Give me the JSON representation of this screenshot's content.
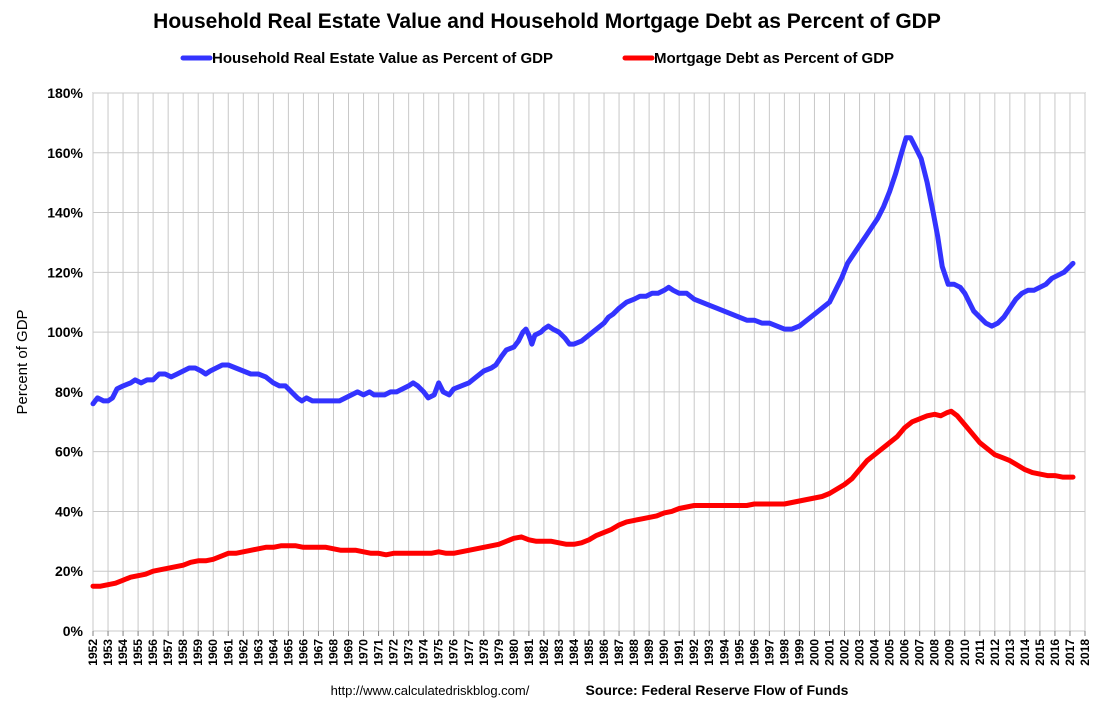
{
  "chart_data": {
    "type": "line",
    "title": "Household Real Estate Value and Household Mortgage Debt as Percent of GDP",
    "ylabel": "Percent of GDP",
    "xlabel": "",
    "xlim": [
      1952,
      2018
    ],
    "ylim": [
      0,
      180
    ],
    "y_ticks": [
      "0%",
      "20%",
      "40%",
      "60%",
      "80%",
      "100%",
      "120%",
      "140%",
      "160%",
      "180%"
    ],
    "x_ticks": [
      "1952",
      "1953",
      "1954",
      "1955",
      "1956",
      "1957",
      "1958",
      "1959",
      "1960",
      "1961",
      "1962",
      "1963",
      "1964",
      "1965",
      "1966",
      "1967",
      "1968",
      "1969",
      "1970",
      "1971",
      "1972",
      "1973",
      "1974",
      "1975",
      "1976",
      "1977",
      "1978",
      "1979",
      "1980",
      "1981",
      "1982",
      "1983",
      "1984",
      "1985",
      "1986",
      "1987",
      "1988",
      "1989",
      "1990",
      "1991",
      "1992",
      "1993",
      "1994",
      "1995",
      "1996",
      "1997",
      "1998",
      "1999",
      "2000",
      "2001",
      "2002",
      "2003",
      "2004",
      "2005",
      "2006",
      "2007",
      "2008",
      "2009",
      "2010",
      "2011",
      "2012",
      "2013",
      "2014",
      "2015",
      "2016",
      "2017",
      "2018"
    ],
    "grid": true,
    "legend_position": "top",
    "series": [
      {
        "name": "Household Real Estate Value as Percent of GDP",
        "color": "#3333ff",
        "points": [
          [
            1952.0,
            76
          ],
          [
            1952.3,
            78
          ],
          [
            1952.7,
            77
          ],
          [
            1953.0,
            77
          ],
          [
            1953.3,
            78
          ],
          [
            1953.6,
            81
          ],
          [
            1954.0,
            82
          ],
          [
            1954.5,
            83
          ],
          [
            1954.8,
            84
          ],
          [
            1955.2,
            83
          ],
          [
            1955.6,
            84
          ],
          [
            1956.0,
            84
          ],
          [
            1956.4,
            86
          ],
          [
            1956.8,
            86
          ],
          [
            1957.2,
            85
          ],
          [
            1957.6,
            86
          ],
          [
            1958.0,
            87
          ],
          [
            1958.4,
            88
          ],
          [
            1958.8,
            88
          ],
          [
            1959.2,
            87
          ],
          [
            1959.5,
            86
          ],
          [
            1959.8,
            87
          ],
          [
            1960.2,
            88
          ],
          [
            1960.6,
            89
          ],
          [
            1961.0,
            89
          ],
          [
            1961.5,
            88
          ],
          [
            1962.0,
            87
          ],
          [
            1962.5,
            86
          ],
          [
            1963.0,
            86
          ],
          [
            1963.5,
            85
          ],
          [
            1964.0,
            83
          ],
          [
            1964.4,
            82
          ],
          [
            1964.8,
            82
          ],
          [
            1965.2,
            80
          ],
          [
            1965.6,
            78
          ],
          [
            1965.9,
            77
          ],
          [
            1966.2,
            78
          ],
          [
            1966.6,
            77
          ],
          [
            1967.0,
            77
          ],
          [
            1967.5,
            77
          ],
          [
            1968.0,
            77
          ],
          [
            1968.4,
            77
          ],
          [
            1968.8,
            78
          ],
          [
            1969.2,
            79
          ],
          [
            1969.6,
            80
          ],
          [
            1970.0,
            79
          ],
          [
            1970.4,
            80
          ],
          [
            1970.7,
            79
          ],
          [
            1971.0,
            79
          ],
          [
            1971.4,
            79
          ],
          [
            1971.8,
            80
          ],
          [
            1972.2,
            80
          ],
          [
            1972.6,
            81
          ],
          [
            1973.0,
            82
          ],
          [
            1973.3,
            83
          ],
          [
            1973.6,
            82
          ],
          [
            1974.0,
            80
          ],
          [
            1974.3,
            78
          ],
          [
            1974.7,
            79
          ],
          [
            1975.0,
            83
          ],
          [
            1975.3,
            80
          ],
          [
            1975.7,
            79
          ],
          [
            1976.0,
            81
          ],
          [
            1976.5,
            82
          ],
          [
            1977.0,
            83
          ],
          [
            1977.5,
            85
          ],
          [
            1978.0,
            87
          ],
          [
            1978.5,
            88
          ],
          [
            1978.8,
            89
          ],
          [
            1979.2,
            92
          ],
          [
            1979.5,
            94
          ],
          [
            1980.0,
            95
          ],
          [
            1980.3,
            97
          ],
          [
            1980.6,
            100
          ],
          [
            1980.8,
            101
          ],
          [
            1981.0,
            99
          ],
          [
            1981.2,
            96
          ],
          [
            1981.4,
            99
          ],
          [
            1981.8,
            100
          ],
          [
            1982.0,
            101
          ],
          [
            1982.3,
            102
          ],
          [
            1982.6,
            101
          ],
          [
            1983.0,
            100
          ],
          [
            1983.4,
            98
          ],
          [
            1983.7,
            96
          ],
          [
            1984.0,
            96
          ],
          [
            1984.5,
            97
          ],
          [
            1985.0,
            99
          ],
          [
            1985.5,
            101
          ],
          [
            1986.0,
            103
          ],
          [
            1986.3,
            105
          ],
          [
            1986.6,
            106
          ],
          [
            1987.0,
            108
          ],
          [
            1987.5,
            110
          ],
          [
            1988.0,
            111
          ],
          [
            1988.4,
            112
          ],
          [
            1988.8,
            112
          ],
          [
            1989.2,
            113
          ],
          [
            1989.6,
            113
          ],
          [
            1990.0,
            114
          ],
          [
            1990.3,
            115
          ],
          [
            1990.6,
            114
          ],
          [
            1991.0,
            113
          ],
          [
            1991.5,
            113
          ],
          [
            1992.0,
            111
          ],
          [
            1992.5,
            110
          ],
          [
            1993.0,
            109
          ],
          [
            1993.5,
            108
          ],
          [
            1994.0,
            107
          ],
          [
            1994.5,
            106
          ],
          [
            1995.0,
            105
          ],
          [
            1995.5,
            104
          ],
          [
            1996.0,
            104
          ],
          [
            1996.5,
            103
          ],
          [
            1997.0,
            103
          ],
          [
            1997.5,
            102
          ],
          [
            1998.0,
            101
          ],
          [
            1998.5,
            101
          ],
          [
            1999.0,
            102
          ],
          [
            1999.5,
            104
          ],
          [
            2000.0,
            106
          ],
          [
            2000.5,
            108
          ],
          [
            2001.0,
            110
          ],
          [
            2001.4,
            114
          ],
          [
            2001.8,
            118
          ],
          [
            2002.2,
            123
          ],
          [
            2002.6,
            126
          ],
          [
            2003.0,
            129
          ],
          [
            2003.4,
            132
          ],
          [
            2003.8,
            135
          ],
          [
            2004.2,
            138
          ],
          [
            2004.6,
            142
          ],
          [
            2005.0,
            147
          ],
          [
            2005.4,
            153
          ],
          [
            2005.8,
            160
          ],
          [
            2006.1,
            165
          ],
          [
            2006.4,
            165
          ],
          [
            2006.8,
            161
          ],
          [
            2007.1,
            158
          ],
          [
            2007.5,
            150
          ],
          [
            2007.9,
            140
          ],
          [
            2008.2,
            132
          ],
          [
            2008.5,
            122
          ],
          [
            2008.9,
            116
          ],
          [
            2009.3,
            116
          ],
          [
            2009.7,
            115
          ],
          [
            2010.0,
            113
          ],
          [
            2010.3,
            110
          ],
          [
            2010.6,
            107
          ],
          [
            2011.0,
            105
          ],
          [
            2011.4,
            103
          ],
          [
            2011.8,
            102
          ],
          [
            2012.2,
            103
          ],
          [
            2012.6,
            105
          ],
          [
            2013.0,
            108
          ],
          [
            2013.4,
            111
          ],
          [
            2013.8,
            113
          ],
          [
            2014.2,
            114
          ],
          [
            2014.6,
            114
          ],
          [
            2015.0,
            115
          ],
          [
            2015.4,
            116
          ],
          [
            2015.8,
            118
          ],
          [
            2016.2,
            119
          ],
          [
            2016.6,
            120
          ],
          [
            2017.0,
            122
          ],
          [
            2017.2,
            123
          ]
        ]
      },
      {
        "name": "Mortgage Debt as Percent of GDP",
        "color": "#ff0000",
        "points": [
          [
            1952.0,
            15
          ],
          [
            1952.5,
            15
          ],
          [
            1953.0,
            15.5
          ],
          [
            1953.5,
            16
          ],
          [
            1954.0,
            17
          ],
          [
            1954.5,
            18
          ],
          [
            1955.0,
            18.5
          ],
          [
            1955.5,
            19
          ],
          [
            1956.0,
            20
          ],
          [
            1956.5,
            20.5
          ],
          [
            1957.0,
            21
          ],
          [
            1957.5,
            21.5
          ],
          [
            1958.0,
            22
          ],
          [
            1958.5,
            23
          ],
          [
            1959.0,
            23.5
          ],
          [
            1959.5,
            23.5
          ],
          [
            1960.0,
            24
          ],
          [
            1960.5,
            25
          ],
          [
            1961.0,
            26
          ],
          [
            1961.5,
            26
          ],
          [
            1962.0,
            26.5
          ],
          [
            1962.5,
            27
          ],
          [
            1963.0,
            27.5
          ],
          [
            1963.5,
            28
          ],
          [
            1964.0,
            28
          ],
          [
            1964.5,
            28.5
          ],
          [
            1965.0,
            28.5
          ],
          [
            1965.5,
            28.5
          ],
          [
            1966.0,
            28
          ],
          [
            1966.5,
            28
          ],
          [
            1967.0,
            28
          ],
          [
            1967.5,
            28
          ],
          [
            1968.0,
            27.5
          ],
          [
            1968.5,
            27
          ],
          [
            1969.0,
            27
          ],
          [
            1969.5,
            27
          ],
          [
            1970.0,
            26.5
          ],
          [
            1970.5,
            26
          ],
          [
            1971.0,
            26
          ],
          [
            1971.5,
            25.5
          ],
          [
            1972.0,
            26
          ],
          [
            1972.5,
            26
          ],
          [
            1973.0,
            26
          ],
          [
            1973.5,
            26
          ],
          [
            1974.0,
            26
          ],
          [
            1974.5,
            26
          ],
          [
            1975.0,
            26.5
          ],
          [
            1975.5,
            26
          ],
          [
            1976.0,
            26
          ],
          [
            1976.5,
            26.5
          ],
          [
            1977.0,
            27
          ],
          [
            1977.5,
            27.5
          ],
          [
            1978.0,
            28
          ],
          [
            1978.5,
            28.5
          ],
          [
            1979.0,
            29
          ],
          [
            1979.5,
            30
          ],
          [
            1980.0,
            31
          ],
          [
            1980.5,
            31.5
          ],
          [
            1981.0,
            30.5
          ],
          [
            1981.5,
            30
          ],
          [
            1982.0,
            30
          ],
          [
            1982.5,
            30
          ],
          [
            1983.0,
            29.5
          ],
          [
            1983.5,
            29
          ],
          [
            1984.0,
            29
          ],
          [
            1984.5,
            29.5
          ],
          [
            1985.0,
            30.5
          ],
          [
            1985.5,
            32
          ],
          [
            1986.0,
            33
          ],
          [
            1986.5,
            34
          ],
          [
            1987.0,
            35.5
          ],
          [
            1987.5,
            36.5
          ],
          [
            1988.0,
            37
          ],
          [
            1988.5,
            37.5
          ],
          [
            1989.0,
            38
          ],
          [
            1989.5,
            38.5
          ],
          [
            1990.0,
            39.5
          ],
          [
            1990.5,
            40
          ],
          [
            1991.0,
            41
          ],
          [
            1991.5,
            41.5
          ],
          [
            1992.0,
            42
          ],
          [
            1992.5,
            42
          ],
          [
            1993.0,
            42
          ],
          [
            1993.5,
            42
          ],
          [
            1994.0,
            42
          ],
          [
            1994.5,
            42
          ],
          [
            1995.0,
            42
          ],
          [
            1995.5,
            42
          ],
          [
            1996.0,
            42.5
          ],
          [
            1996.5,
            42.5
          ],
          [
            1997.0,
            42.5
          ],
          [
            1997.5,
            42.5
          ],
          [
            1998.0,
            42.5
          ],
          [
            1998.5,
            43
          ],
          [
            1999.0,
            43.5
          ],
          [
            1999.5,
            44
          ],
          [
            2000.0,
            44.5
          ],
          [
            2000.5,
            45
          ],
          [
            2001.0,
            46
          ],
          [
            2001.5,
            47.5
          ],
          [
            2002.0,
            49
          ],
          [
            2002.5,
            51
          ],
          [
            2003.0,
            54
          ],
          [
            2003.5,
            57
          ],
          [
            2004.0,
            59
          ],
          [
            2004.5,
            61
          ],
          [
            2005.0,
            63
          ],
          [
            2005.5,
            65
          ],
          [
            2006.0,
            68
          ],
          [
            2006.5,
            70
          ],
          [
            2007.0,
            71
          ],
          [
            2007.5,
            72
          ],
          [
            2008.0,
            72.5
          ],
          [
            2008.4,
            72
          ],
          [
            2008.8,
            73
          ],
          [
            2009.1,
            73.5
          ],
          [
            2009.5,
            72
          ],
          [
            2010.0,
            69
          ],
          [
            2010.5,
            66
          ],
          [
            2011.0,
            63
          ],
          [
            2011.5,
            61
          ],
          [
            2012.0,
            59
          ],
          [
            2012.5,
            58
          ],
          [
            2013.0,
            57
          ],
          [
            2013.5,
            55.5
          ],
          [
            2014.0,
            54
          ],
          [
            2014.5,
            53
          ],
          [
            2015.0,
            52.5
          ],
          [
            2015.5,
            52
          ],
          [
            2016.0,
            52
          ],
          [
            2016.5,
            51.5
          ],
          [
            2017.0,
            51.5
          ],
          [
            2017.2,
            51.5
          ]
        ]
      }
    ]
  },
  "footer": {
    "url": "http://www.calculatedriskblog.com/",
    "source": "Source: Federal Reserve Flow of Funds"
  }
}
